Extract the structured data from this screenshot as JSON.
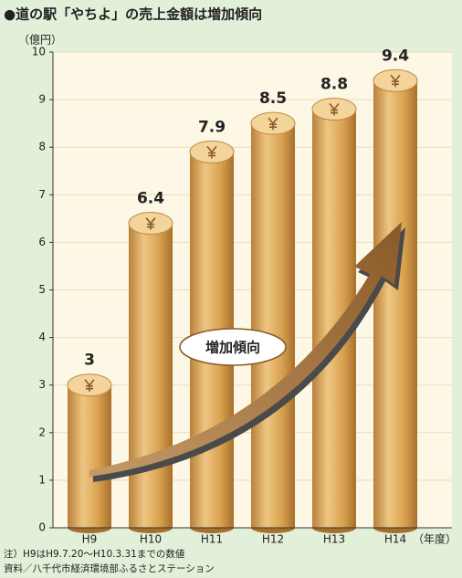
{
  "chart_data": {
    "type": "bar",
    "title": "●道の駅「やちよ」の売上金額は増加傾向",
    "y_unit_label": "（億円）",
    "x_unit_label": "（年度）",
    "annotation": "増加傾向",
    "notes": [
      "注）H9はH9.7.20〜H10.3.31までの数値",
      "資料／八千代市経済環境部ふるさとステーション"
    ],
    "categories": [
      "H9",
      "H10",
      "H11",
      "H12",
      "H13",
      "H14"
    ],
    "values": [
      3,
      6.4,
      7.9,
      8.5,
      8.8,
      9.4
    ],
    "color": "#d9a250",
    "ylim": [
      0,
      10
    ],
    "yticks": [
      0,
      1,
      2,
      3,
      4,
      5,
      6,
      7,
      8,
      9,
      10
    ],
    "grid": true
  }
}
